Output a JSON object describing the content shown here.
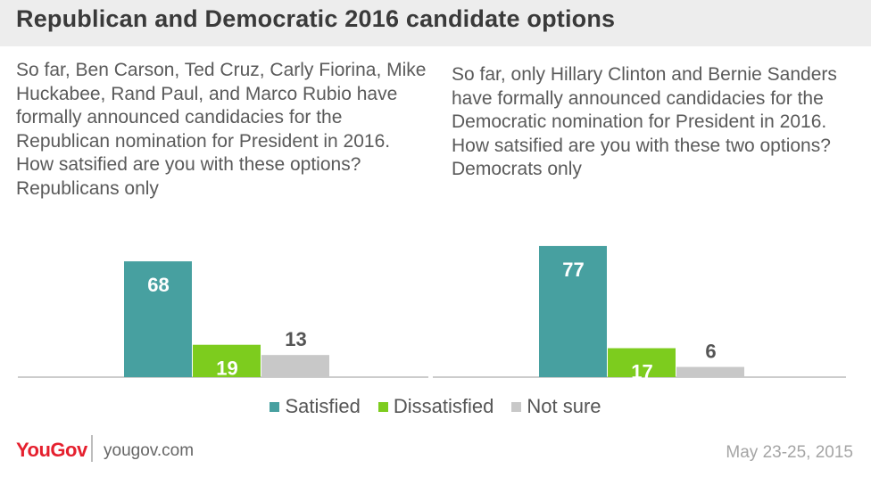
{
  "title": "Republican and Democratic 2016 candidate options",
  "questions": {
    "left": "So far, Ben Carson, Ted Cruz, Carly Fiorina, Mike Huckabee, Rand Paul, and Marco Rubio have formally announced candidacies for the Republican nomination for President in 2016. How satsified are you with these options? Republicans only",
    "right": "So far, only Hillary Clinton and Bernie Sanders have formally announced candidacies for the Democratic nomination for President in 2016. How satsified are you with these two options? Democrats only"
  },
  "colors": {
    "satisfied": "#47a0a0",
    "dissatisfied": "#7dcc1e",
    "not_sure": "#c8c8c8",
    "label_inside": "#ffffff",
    "label_outside": "#555555"
  },
  "chart_data": {
    "type": "bar",
    "groups": [
      "Republicans",
      "Democrats"
    ],
    "series": [
      {
        "name": "Satisfied",
        "values": [
          68,
          77
        ]
      },
      {
        "name": "Dissatisfied",
        "values": [
          19,
          17
        ]
      },
      {
        "name": "Not sure",
        "values": [
          13,
          6
        ]
      }
    ],
    "ylim": [
      0,
      100
    ],
    "grid": false,
    "legend": "bottom"
  },
  "legend": [
    "Satisfied",
    "Dissatisfied",
    "Not sure"
  ],
  "footer": {
    "logo": "YouGov",
    "url": "yougov.com",
    "date": "May 23-25, 2015"
  }
}
